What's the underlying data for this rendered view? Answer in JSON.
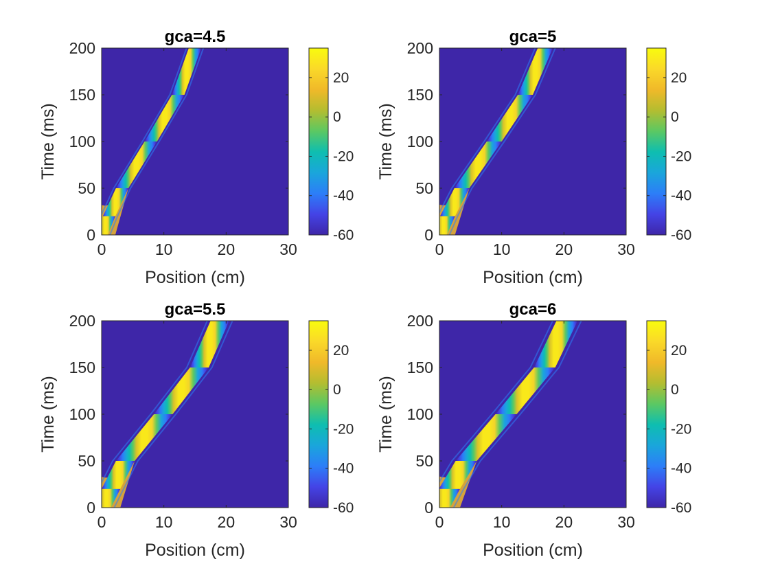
{
  "chart_data": [
    {
      "type": "heatmap",
      "title": "gca=4.5",
      "xlabel": "Position (cm)",
      "ylabel": "Time (ms)",
      "xlim": [
        0,
        30
      ],
      "ylim": [
        0,
        200
      ],
      "xticks": [
        0,
        10,
        20,
        30
      ],
      "yticks": [
        0,
        50,
        100,
        150,
        200
      ],
      "colorbar": {
        "ticks": [
          20,
          0,
          -20,
          -40,
          -60
        ],
        "range": [
          -60,
          35
        ],
        "colormap": "parula"
      },
      "band": {
        "description_of_values": "centerline of the depolarization wave (position in cm at time in ms)",
        "centerline": [
          [
            0,
            0
          ],
          [
            1.2,
            20
          ],
          [
            3.3,
            50
          ],
          [
            7.9,
            100
          ],
          [
            12.3,
            150
          ],
          [
            15.0,
            200
          ]
        ],
        "half_width_cm": 1.0,
        "plateau_mV": 30
      }
    },
    {
      "type": "heatmap",
      "title": "gca=5",
      "xlabel": "Position (cm)",
      "ylabel": "Time (ms)",
      "xlim": [
        0,
        30
      ],
      "ylim": [
        0,
        200
      ],
      "xticks": [
        0,
        10,
        20,
        30
      ],
      "yticks": [
        0,
        50,
        100,
        150,
        200
      ],
      "colorbar": {
        "ticks": [
          20,
          0,
          -20,
          -40,
          -60
        ],
        "range": [
          -60,
          35
        ],
        "colormap": "parula"
      },
      "band": {
        "centerline": [
          [
            0,
            0
          ],
          [
            1.3,
            20
          ],
          [
            3.6,
            50
          ],
          [
            8.8,
            100
          ],
          [
            13.8,
            150
          ],
          [
            17.0,
            200
          ]
        ],
        "half_width_cm": 1.2,
        "plateau_mV": 30
      }
    },
    {
      "type": "heatmap",
      "title": "gca=5.5",
      "xlabel": "Position (cm)",
      "ylabel": "Time (ms)",
      "xlim": [
        0,
        30
      ],
      "ylim": [
        0,
        200
      ],
      "xticks": [
        0,
        10,
        20,
        30
      ],
      "yticks": [
        0,
        50,
        100,
        150,
        200
      ],
      "colorbar": {
        "ticks": [
          20,
          0,
          -20,
          -40,
          -60
        ],
        "range": [
          -60,
          35
        ],
        "colormap": "parula"
      },
      "band": {
        "centerline": [
          [
            0,
            0
          ],
          [
            1.5,
            20
          ],
          [
            3.8,
            50
          ],
          [
            9.9,
            100
          ],
          [
            15.7,
            150
          ],
          [
            19.0,
            200
          ]
        ],
        "half_width_cm": 1.5,
        "plateau_mV": 30
      }
    },
    {
      "type": "heatmap",
      "title": "gca=6",
      "xlabel": "Position (cm)",
      "ylabel": "Time (ms)",
      "xlim": [
        0,
        30
      ],
      "ylim": [
        0,
        200
      ],
      "xticks": [
        0,
        10,
        20,
        30
      ],
      "yticks": [
        0,
        50,
        100,
        150,
        200
      ],
      "colorbar": {
        "ticks": [
          20,
          0,
          -20,
          -40,
          -60
        ],
        "range": [
          -60,
          35
        ],
        "colormap": "parula"
      },
      "band": {
        "centerline": [
          [
            0,
            0
          ],
          [
            1.6,
            20
          ],
          [
            4.3,
            50
          ],
          [
            10.7,
            100
          ],
          [
            16.9,
            150
          ],
          [
            20.5,
            200
          ]
        ],
        "half_width_cm": 1.7,
        "plateau_mV": 30
      }
    }
  ],
  "colors": {
    "background_mV": "#3e26a8",
    "parula": [
      "#3e26a8",
      "#4444e6",
      "#2c7ef8",
      "#1aa6db",
      "#0ebeb0",
      "#5cc862",
      "#b4bd30",
      "#f0b929",
      "#fad929",
      "#f9fb0e"
    ]
  }
}
